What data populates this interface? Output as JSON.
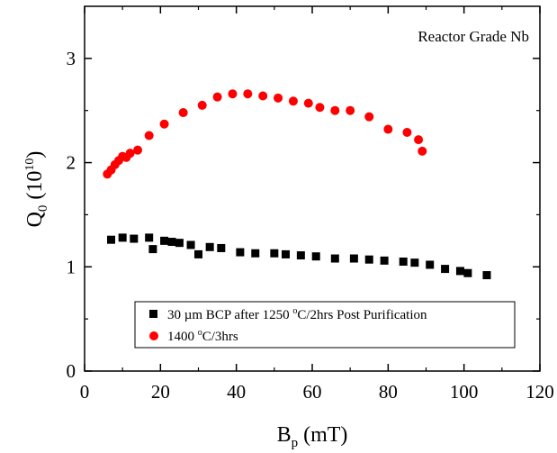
{
  "chart_data": {
    "type": "scatter",
    "annotation": "Reactor Grade Nb",
    "xlabel": {
      "main": "B",
      "sub": "p",
      "rest": " (mT)"
    },
    "ylabel": {
      "main": "Q",
      "sub": "0",
      "pre": " (10",
      "sup": "10",
      "post": ")"
    },
    "xlim": [
      0,
      120
    ],
    "ylim": [
      0,
      3.5
    ],
    "xticks": [
      0,
      20,
      40,
      60,
      80,
      100,
      120
    ],
    "yticks": [
      0,
      1,
      2,
      3
    ],
    "xtick_labels": [
      "0",
      "20",
      "40",
      "60",
      "80",
      "100",
      "120"
    ],
    "ytick_labels": [
      "0",
      "1",
      "2",
      "3"
    ],
    "legend_position": "bottom-center",
    "grid": false,
    "series": [
      {
        "name": "30 µm BCP after 1250 °C/2hrs Post Purification",
        "legend_parts": [
          "30 µm BCP after 1250 ",
          "o",
          "C/2hrs Post Purification"
        ],
        "marker": "square",
        "color": "#000000",
        "x": [
          7,
          10,
          13,
          17,
          18,
          21,
          23,
          25,
          28,
          30,
          33,
          36,
          41,
          45,
          50,
          53,
          57,
          61,
          66,
          71,
          75,
          79,
          84,
          87,
          91,
          95,
          99,
          101,
          106
        ],
        "y": [
          1.26,
          1.28,
          1.27,
          1.28,
          1.17,
          1.25,
          1.24,
          1.23,
          1.21,
          1.12,
          1.19,
          1.18,
          1.14,
          1.13,
          1.13,
          1.12,
          1.11,
          1.1,
          1.08,
          1.08,
          1.07,
          1.06,
          1.05,
          1.04,
          1.02,
          0.98,
          0.96,
          0.94,
          0.92
        ]
      },
      {
        "name": "1400 °C/3hrs",
        "legend_parts": [
          "1400 ",
          "o",
          "C/3hrs"
        ],
        "marker": "circle",
        "color": "#ff0000",
        "x": [
          6,
          7,
          8,
          9,
          10,
          11,
          12,
          14,
          17,
          21,
          26,
          31,
          35,
          39,
          43,
          47,
          51,
          55,
          59,
          62,
          66,
          70,
          75,
          80,
          85,
          88,
          89
        ],
        "y": [
          1.89,
          1.93,
          1.98,
          2.02,
          2.06,
          2.05,
          2.09,
          2.12,
          2.26,
          2.37,
          2.48,
          2.55,
          2.63,
          2.66,
          2.66,
          2.64,
          2.62,
          2.59,
          2.57,
          2.53,
          2.5,
          2.5,
          2.44,
          2.32,
          2.29,
          2.22,
          2.11
        ]
      }
    ]
  }
}
